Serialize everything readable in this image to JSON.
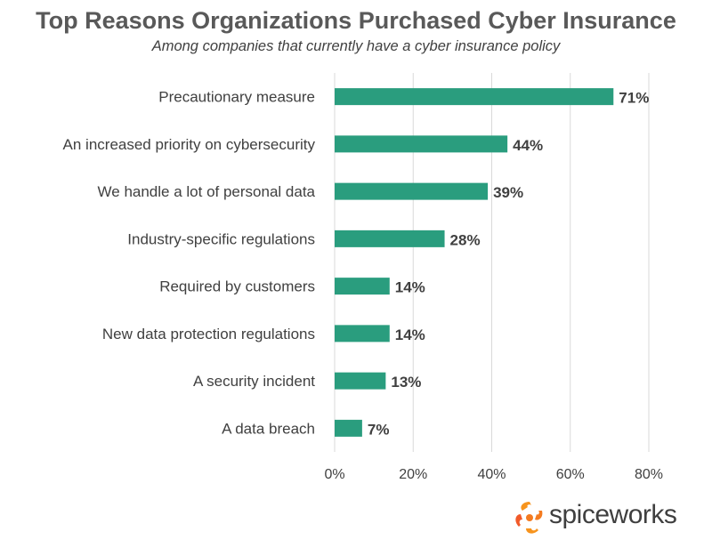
{
  "title": "Top Reasons Organizations Purchased Cyber Insurance",
  "subtitle": "Among companies that currently have a cyber insurance policy",
  "brand": "spiceworks",
  "colors": {
    "bar": "#2a9d7e",
    "grid": "#d9d9d9",
    "label": "#404040",
    "value": "#404040"
  },
  "chart_data": {
    "type": "bar",
    "orientation": "horizontal",
    "categories": [
      "Precautionary measure",
      "An increased priority on cybersecurity",
      "We handle a lot of personal data",
      "Industry-specific regulations",
      "Required by customers",
      "New data protection regulations",
      "A security incident",
      "A data breach"
    ],
    "values": [
      71,
      44,
      39,
      28,
      14,
      14,
      13,
      7
    ],
    "value_labels": [
      "71%",
      "44%",
      "39%",
      "28%",
      "14%",
      "14%",
      "13%",
      "7%"
    ],
    "x_ticks": [
      0,
      20,
      40,
      60,
      80
    ],
    "x_tick_labels": [
      "0%",
      "20%",
      "40%",
      "60%",
      "80%"
    ],
    "xlim": [
      0,
      80
    ],
    "grid": true
  }
}
